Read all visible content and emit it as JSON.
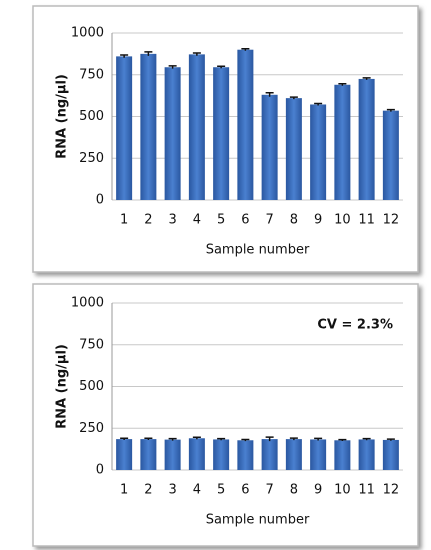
{
  "chart_data": [
    {
      "type": "bar",
      "y_label": "RNA (ng/μl)",
      "x_label": "Sample number",
      "categories": [
        "1",
        "2",
        "3",
        "4",
        "5",
        "6",
        "7",
        "8",
        "9",
        "10",
        "11",
        "12"
      ],
      "values": [
        860,
        875,
        795,
        872,
        795,
        900,
        630,
        610,
        572,
        690,
        725,
        535
      ],
      "errors": [
        8,
        12,
        8,
        8,
        6,
        6,
        12,
        6,
        6,
        6,
        6,
        6
      ],
      "color": "#3a6fc0",
      "ylim": [
        0,
        1000
      ],
      "yticks": [
        0,
        250,
        500,
        750,
        1000
      ],
      "grid": true
    },
    {
      "type": "bar",
      "y_label": "RNA (ng/μl)",
      "x_label": "Sample number",
      "annotation": "CV = 2.3%",
      "categories": [
        "1",
        "2",
        "3",
        "4",
        "5",
        "6",
        "7",
        "8",
        "9",
        "10",
        "11",
        "12"
      ],
      "values": [
        185,
        185,
        182,
        190,
        183,
        178,
        185,
        185,
        183,
        178,
        183,
        180
      ],
      "errors": [
        5,
        5,
        6,
        6,
        5,
        5,
        12,
        6,
        6,
        4,
        5,
        5
      ],
      "color": "#3a6fc0",
      "ylim": [
        0,
        1000
      ],
      "yticks": [
        0,
        250,
        500,
        750,
        1000
      ],
      "grid": true
    }
  ]
}
